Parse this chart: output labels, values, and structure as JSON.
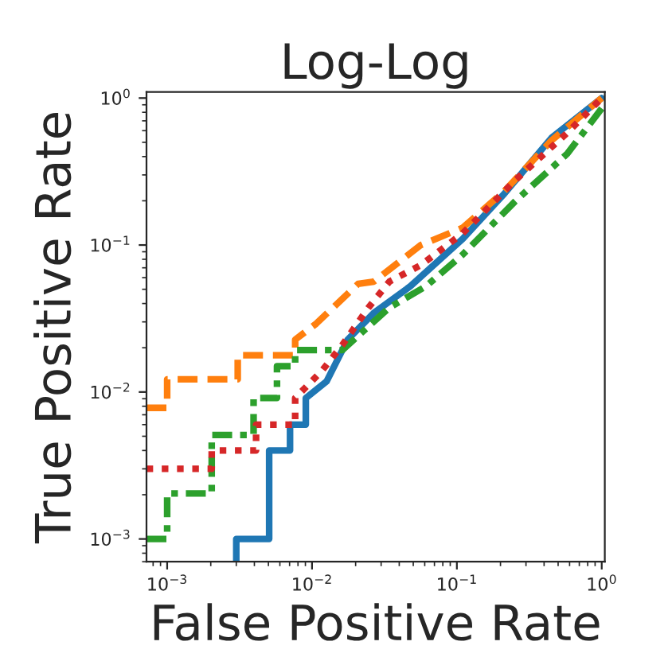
{
  "chart_data": {
    "type": "line",
    "title": "Log-Log",
    "xlabel": "False Positive Rate",
    "ylabel": "True Positive Rate",
    "log": "xy",
    "grid": false,
    "legend": false,
    "xlim": [
      0.00072,
      1.05
    ],
    "ylim": [
      0.0007,
      1.1
    ],
    "xticks": [
      {
        "value": 0.001,
        "label": "10$^{−3}$"
      },
      {
        "value": 0.01,
        "label": "10$^{−2}$"
      },
      {
        "value": 0.1,
        "label": "10$^{−1}$"
      },
      {
        "value": 1,
        "label": "10$^{0}$"
      }
    ],
    "yticks": [
      {
        "value": 0.001,
        "label": "10$^{−3}$"
      },
      {
        "value": 0.01,
        "label": "10$^{−2}$"
      },
      {
        "value": 0.1,
        "label": "10$^{−1}$"
      },
      {
        "value": 1,
        "label": "10$^{0}$"
      }
    ],
    "series": [
      {
        "color": "#1f77b4",
        "line_style": "solid",
        "x": [
          0.003,
          0.003,
          0.00506,
          0.00506,
          0.00705,
          0.00705,
          0.00906,
          0.00906,
          0.0126,
          0.0176,
          0.0267,
          0.0477,
          0.1096,
          0.213,
          0.45,
          1
        ],
        "values": [
          0.0007,
          0.001,
          0.001,
          0.004,
          0.004,
          0.006,
          0.006,
          0.0091,
          0.0118,
          0.0227,
          0.0345,
          0.0524,
          0.11,
          0.224,
          0.536,
          1
        ]
      },
      {
        "color": "#ff7f0e",
        "line_style": "dashed",
        "x": [
          0.00072,
          0.001,
          0.001,
          0.00307,
          0.00307,
          0.00765,
          0.00765,
          0.0107,
          0.0208,
          0.0267,
          0.0564,
          0.1096,
          0.213,
          0.45,
          1
        ],
        "values": [
          0.0078,
          0.0078,
          0.0122,
          0.0122,
          0.0178,
          0.0178,
          0.0227,
          0.0292,
          0.0544,
          0.0564,
          0.1,
          0.131,
          0.233,
          0.514,
          1
        ]
      },
      {
        "color": "#2ca02c",
        "line_style": "dashdot",
        "x": [
          0.00072,
          0.001,
          0.001,
          0.00203,
          0.00203,
          0.00395,
          0.00395,
          0.00573,
          0.00573,
          0.00765,
          0.00765,
          0.0162,
          0.0342,
          0.0612,
          0.1096,
          0.252,
          0.578,
          1
        ],
        "values": [
          0.001,
          0.001,
          0.00204,
          0.00204,
          0.0051,
          0.0051,
          0.0091,
          0.0091,
          0.015,
          0.015,
          0.0193,
          0.0193,
          0.0375,
          0.0524,
          0.086,
          0.198,
          0.418,
          0.85
        ]
      },
      {
        "color": "#d62728",
        "line_style": "dotted",
        "x": [
          0.00072,
          0.00203,
          0.00203,
          0.00411,
          0.00411,
          0.00765,
          0.00765,
          0.0116,
          0.0162,
          0.0245,
          0.0342,
          0.0564,
          0.1096,
          0.252,
          0.578,
          1
        ],
        "values": [
          0.003,
          0.003,
          0.004,
          0.004,
          0.006,
          0.006,
          0.0091,
          0.0138,
          0.0209,
          0.0375,
          0.0564,
          0.073,
          0.12,
          0.275,
          0.58,
          1
        ]
      }
    ]
  }
}
